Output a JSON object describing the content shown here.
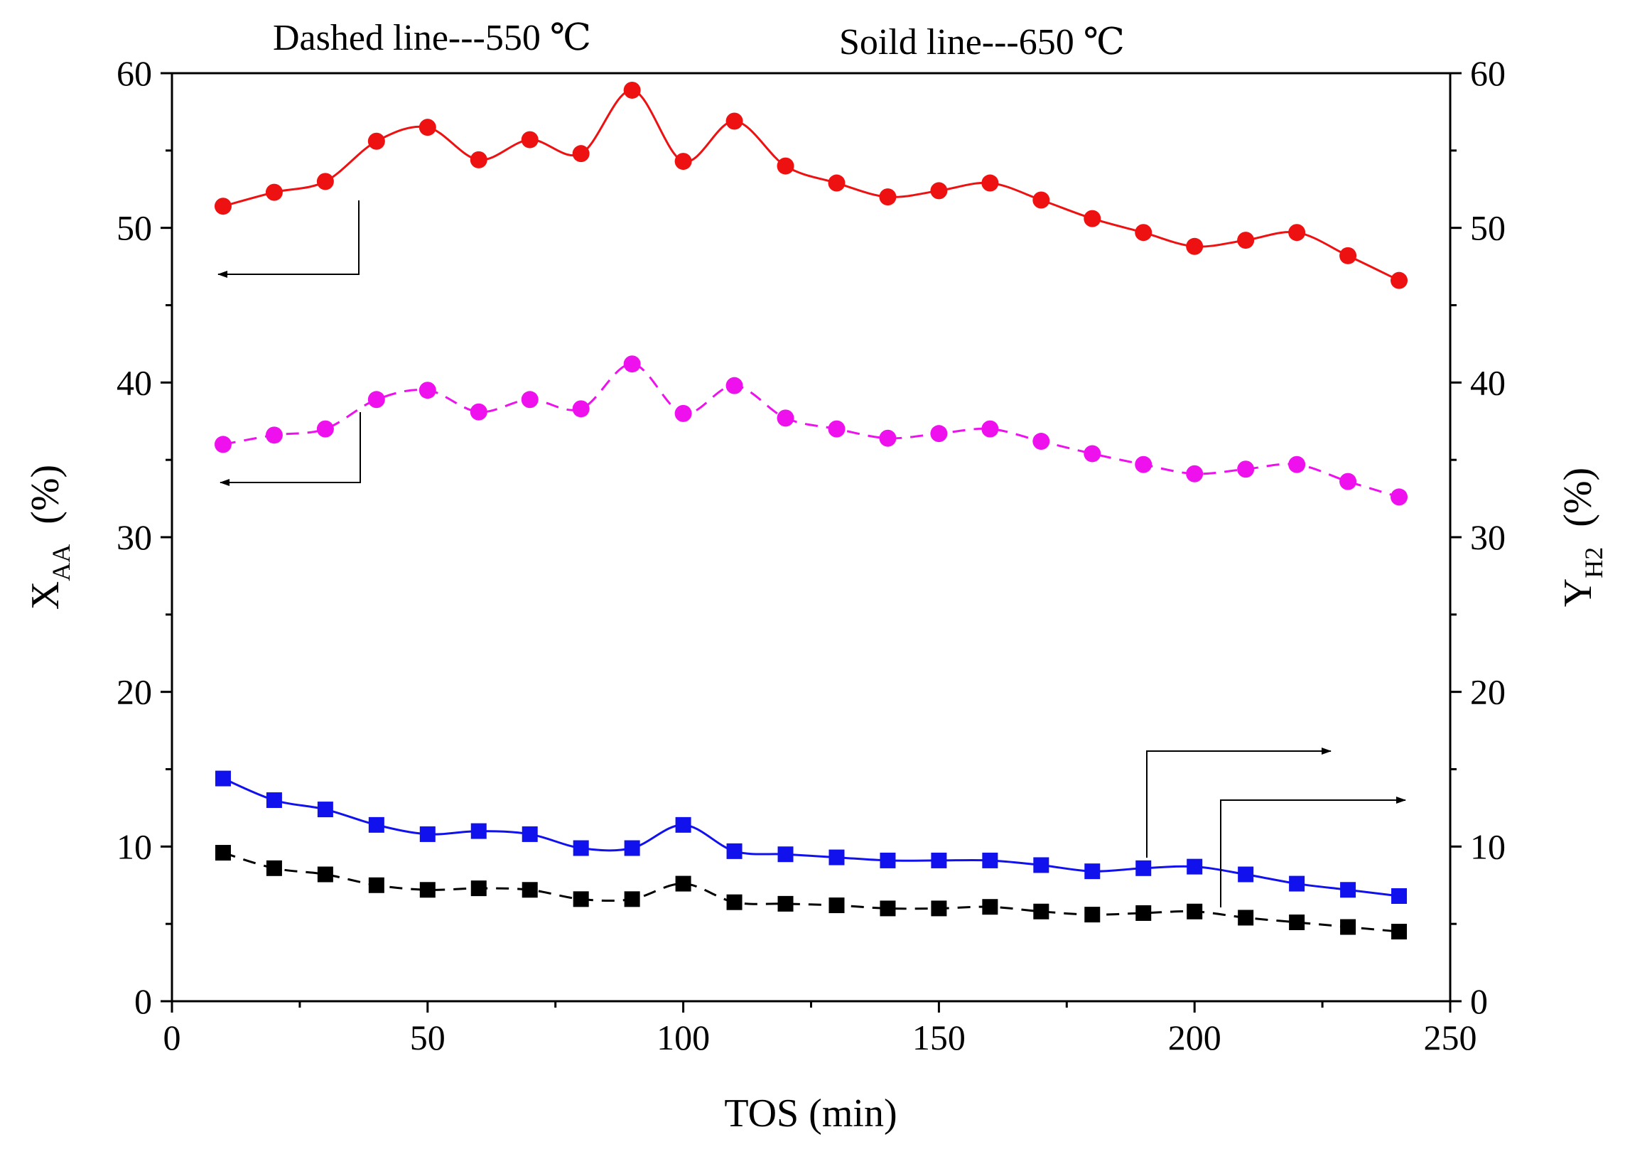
{
  "chart_data": {
    "type": "line",
    "title": "",
    "annotations": {
      "dashed": "Dashed line---550 ℃",
      "solid": "Soild line---650 ℃"
    },
    "xlabel": "TOS (min)",
    "ylabel": {
      "main": "X",
      "sub": "AA",
      "unit": "(%)"
    },
    "y2label": {
      "main": "Y",
      "sub": "H2",
      "unit": "(%)"
    },
    "xlim": [
      0,
      250
    ],
    "ylim": [
      0,
      60
    ],
    "y2lim": [
      0,
      60
    ],
    "xticks": [
      "0",
      "50",
      "100",
      "150",
      "200",
      "250"
    ],
    "yticks": [
      "0",
      "10",
      "20",
      "30",
      "40",
      "50",
      "60"
    ],
    "y2ticks": [
      "0",
      "10",
      "20",
      "30",
      "40",
      "50",
      "60"
    ],
    "x": [
      10,
      20,
      30,
      40,
      50,
      60,
      70,
      80,
      90,
      100,
      110,
      120,
      130,
      140,
      150,
      160,
      170,
      180,
      190,
      200,
      210,
      220,
      230,
      240
    ],
    "series": [
      {
        "name": "X_AA 650 ℃",
        "axis": "left",
        "line": "solid",
        "marker": "circle",
        "color": "#ee1111",
        "values": [
          51.4,
          52.3,
          53.0,
          55.6,
          56.5,
          54.4,
          55.7,
          54.8,
          58.9,
          54.3,
          56.9,
          54.0,
          52.9,
          52.0,
          52.4,
          52.9,
          51.8,
          50.6,
          49.7,
          48.8,
          49.2,
          49.7,
          48.2,
          46.6
        ]
      },
      {
        "name": "X_AA 550 ℃",
        "axis": "left",
        "line": "dashed",
        "marker": "circle",
        "color": "#ee11ee",
        "values": [
          36.0,
          36.6,
          37.0,
          38.9,
          39.5,
          38.1,
          38.9,
          38.3,
          41.2,
          38.0,
          39.8,
          37.7,
          37.0,
          36.4,
          36.7,
          37.0,
          36.2,
          35.4,
          34.7,
          34.1,
          34.4,
          34.7,
          33.6,
          32.6
        ]
      },
      {
        "name": "Y_H2 650 ℃",
        "axis": "right",
        "line": "solid",
        "marker": "square",
        "color": "#1111ee",
        "values": [
          14.4,
          13.0,
          12.4,
          11.4,
          10.8,
          11.0,
          10.8,
          9.9,
          9.9,
          11.4,
          9.7,
          9.5,
          9.3,
          9.1,
          9.1,
          9.1,
          8.8,
          8.4,
          8.6,
          8.7,
          8.2,
          7.6,
          7.2,
          6.8
        ]
      },
      {
        "name": "Y_H2 550 ℃",
        "axis": "right",
        "line": "dashed",
        "marker": "square",
        "color": "#000000",
        "values": [
          9.6,
          8.6,
          8.2,
          7.5,
          7.2,
          7.3,
          7.2,
          6.6,
          6.6,
          7.6,
          6.4,
          6.3,
          6.2,
          6.0,
          6.0,
          6.1,
          5.8,
          5.6,
          5.7,
          5.8,
          5.4,
          5.1,
          4.8,
          4.5
        ]
      }
    ]
  },
  "colors": {
    "axis": "#000000",
    "background": "#ffffff"
  }
}
